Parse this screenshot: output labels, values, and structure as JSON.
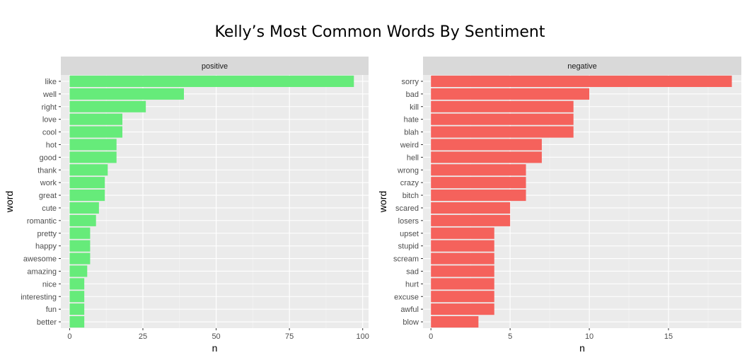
{
  "chart_data": {
    "title": "Kelly’s Most Common Words By Sentiment",
    "type": "bar",
    "orientation": "horizontal",
    "facets": [
      {
        "strip_label": "positive",
        "color": "#66eb7a",
        "xlabel": "n",
        "ylabel": "word",
        "xlim": [
          -3,
          102
        ],
        "xticks": [
          0,
          25,
          50,
          75,
          100
        ],
        "categories": [
          "like",
          "well",
          "right",
          "love",
          "cool",
          "hot",
          "good",
          "thank",
          "work",
          "great",
          "cute",
          "romantic",
          "pretty",
          "happy",
          "awesome",
          "amazing",
          "nice",
          "interesting",
          "fun",
          "better"
        ],
        "values": [
          97,
          39,
          26,
          18,
          18,
          16,
          16,
          13,
          12,
          12,
          10,
          9,
          7,
          7,
          7,
          6,
          5,
          5,
          5,
          5
        ]
      },
      {
        "strip_label": "negative",
        "color": "#f5625c",
        "xlabel": "n",
        "ylabel": "word",
        "xlim": [
          -0.5,
          19.6
        ],
        "xticks": [
          0,
          5,
          10,
          15
        ],
        "categories": [
          "sorry",
          "bad",
          "kill",
          "hate",
          "blah",
          "weird",
          "hell",
          "wrong",
          "crazy",
          "bitch",
          "scared",
          "losers",
          "upset",
          "stupid",
          "scream",
          "sad",
          "hurt",
          "excuse",
          "awful",
          "blow"
        ],
        "values": [
          19,
          10,
          9,
          9,
          9,
          7,
          7,
          6,
          6,
          6,
          5,
          5,
          4,
          4,
          4,
          4,
          4,
          4,
          4,
          3
        ]
      }
    ],
    "grid": true,
    "legend": "none"
  }
}
